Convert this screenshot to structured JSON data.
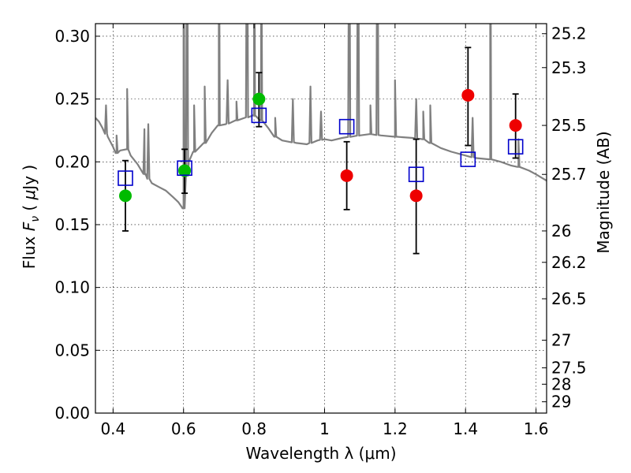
{
  "chart_data": {
    "type": "scatter",
    "xlabel": "Wavelength  λ (μm)",
    "ylabel": "Flux  F_ν  ( μJy )",
    "ylabel_parts": [
      "Flux  ",
      "F",
      "ν",
      "  ( ",
      "μ",
      "Jy )"
    ],
    "y2label": "Magnitude (AB)",
    "xlim": [
      0.35,
      1.63
    ],
    "ylim": [
      0.0,
      0.31
    ],
    "grid": true,
    "x_ticks": [
      0.4,
      0.6,
      0.8,
      1.0,
      1.2,
      1.4,
      1.6
    ],
    "x_tick_labels": [
      "0.4",
      "0.6",
      "0.8",
      "1",
      "1.2",
      "1.4",
      "1.6"
    ],
    "y_ticks": [
      0.0,
      0.05,
      0.1,
      0.15,
      0.2,
      0.25,
      0.3
    ],
    "y_tick_labels": [
      "0.00",
      "0.05",
      "0.10",
      "0.15",
      "0.20",
      "0.25",
      "0.30"
    ],
    "mag_ticks": [
      {
        "label": "25.2",
        "flux": 0.302
      },
      {
        "label": "25.3",
        "flux": 0.275
      },
      {
        "label": "25.5",
        "flux": 0.229
      },
      {
        "label": "25.7",
        "flux": 0.19
      },
      {
        "label": "26",
        "flux": 0.145
      },
      {
        "label": "26.2",
        "flux": 0.12
      },
      {
        "label": "26.5",
        "flux": 0.091
      },
      {
        "label": "27",
        "flux": 0.058
      },
      {
        "label": "27.5",
        "flux": 0.036
      },
      {
        "label": "28",
        "flux": 0.023
      },
      {
        "label": "29",
        "flux": 0.009
      }
    ],
    "colors": {
      "model": "#808080",
      "optical": "#00bb00",
      "infrared": "#ee0000",
      "model_box": "#0000cc",
      "errorbar": "#000000"
    },
    "model_points": {
      "name": "",
      "x": [
        0.435,
        0.603,
        0.814,
        1.063,
        1.26,
        1.407,
        1.542
      ],
      "y": [
        0.187,
        0.195,
        0.237,
        0.228,
        0.19,
        0.202,
        0.212
      ]
    },
    "observed_points": [
      {
        "x": 0.435,
        "y": 0.173,
        "err_low": 0.145,
        "err_high": 0.201,
        "group": "optical"
      },
      {
        "x": 0.603,
        "y": 0.193,
        "err_low": 0.175,
        "err_high": 0.21,
        "group": "optical"
      },
      {
        "x": 0.814,
        "y": 0.25,
        "err_low": 0.228,
        "err_high": 0.271,
        "group": "optical"
      },
      {
        "x": 1.063,
        "y": 0.189,
        "err_low": 0.162,
        "err_high": 0.216,
        "group": "infrared"
      },
      {
        "x": 1.26,
        "y": 0.173,
        "err_low": 0.127,
        "err_high": 0.218,
        "group": "infrared"
      },
      {
        "x": 1.407,
        "y": 0.253,
        "err_low": 0.213,
        "err_high": 0.291,
        "group": "infrared"
      },
      {
        "x": 1.542,
        "y": 0.229,
        "err_low": 0.203,
        "err_high": 0.254,
        "group": "infrared"
      }
    ],
    "sed": {
      "name": "",
      "continuum": [
        [
          0.35,
          0.235
        ],
        [
          0.36,
          0.232
        ],
        [
          0.37,
          0.227
        ],
        [
          0.385,
          0.22
        ],
        [
          0.4,
          0.212
        ],
        [
          0.41,
          0.207
        ],
        [
          0.42,
          0.209
        ],
        [
          0.44,
          0.21
        ],
        [
          0.45,
          0.205
        ],
        [
          0.47,
          0.198
        ],
        [
          0.49,
          0.19
        ],
        [
          0.51,
          0.183
        ],
        [
          0.53,
          0.18
        ],
        [
          0.55,
          0.177
        ],
        [
          0.57,
          0.172
        ],
        [
          0.585,
          0.168
        ],
        [
          0.595,
          0.164
        ],
        [
          0.6,
          0.163
        ],
        [
          0.605,
          0.178
        ],
        [
          0.615,
          0.2
        ],
        [
          0.63,
          0.208
        ],
        [
          0.66,
          0.215
        ],
        [
          0.68,
          0.223
        ],
        [
          0.7,
          0.229
        ],
        [
          0.72,
          0.23
        ],
        [
          0.75,
          0.233
        ],
        [
          0.8,
          0.237
        ],
        [
          0.82,
          0.233
        ],
        [
          0.84,
          0.227
        ],
        [
          0.86,
          0.22
        ],
        [
          0.88,
          0.217
        ],
        [
          0.92,
          0.215
        ],
        [
          0.95,
          0.214
        ],
        [
          0.98,
          0.217
        ],
        [
          1.0,
          0.218
        ],
        [
          1.02,
          0.217
        ],
        [
          1.05,
          0.219
        ],
        [
          1.1,
          0.221
        ],
        [
          1.13,
          0.222
        ],
        [
          1.16,
          0.221
        ],
        [
          1.2,
          0.22
        ],
        [
          1.25,
          0.219
        ],
        [
          1.28,
          0.218
        ],
        [
          1.3,
          0.215
        ],
        [
          1.33,
          0.211
        ],
        [
          1.36,
          0.208
        ],
        [
          1.4,
          0.205
        ],
        [
          1.43,
          0.203
        ],
        [
          1.47,
          0.202
        ],
        [
          1.5,
          0.2
        ],
        [
          1.53,
          0.197
        ],
        [
          1.55,
          0.196
        ],
        [
          1.58,
          0.193
        ],
        [
          1.6,
          0.19
        ],
        [
          1.63,
          0.185
        ]
      ],
      "lines": [
        [
          0.38,
          0.245
        ],
        [
          0.41,
          0.221
        ],
        [
          0.44,
          0.258
        ],
        [
          0.489,
          0.226
        ],
        [
          0.5,
          0.23
        ],
        [
          0.6,
          0.45
        ],
        [
          0.61,
          0.45
        ],
        [
          0.63,
          0.245
        ],
        [
          0.66,
          0.26
        ],
        [
          0.7,
          0.45
        ],
        [
          0.725,
          0.265
        ],
        [
          0.75,
          0.248
        ],
        [
          0.78,
          0.45
        ],
        [
          0.8,
          0.45
        ],
        [
          0.82,
          0.45
        ],
        [
          0.86,
          0.235
        ],
        [
          0.91,
          0.25
        ],
        [
          0.96,
          0.26
        ],
        [
          0.99,
          0.24
        ],
        [
          1.07,
          0.45
        ],
        [
          1.095,
          0.45
        ],
        [
          1.13,
          0.245
        ],
        [
          1.15,
          0.45
        ],
        [
          1.2,
          0.265
        ],
        [
          1.26,
          0.25
        ],
        [
          1.28,
          0.24
        ],
        [
          1.3,
          0.245
        ],
        [
          1.42,
          0.235
        ],
        [
          1.47,
          0.45
        ],
        [
          1.55,
          0.218
        ]
      ]
    }
  }
}
